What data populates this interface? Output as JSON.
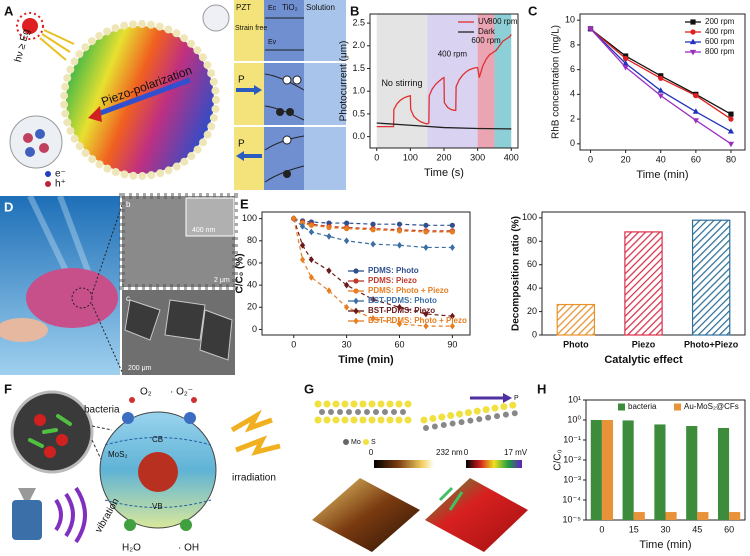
{
  "panel_letters": [
    "A",
    "B",
    "C",
    "D",
    "E",
    "F",
    "G",
    "H"
  ],
  "panel_a": {
    "excitation": "hν ≥ Eg",
    "sphere_label": "Piezo-polarization",
    "electron": "e⁻",
    "hole": "h⁺",
    "columns": [
      "PZT",
      "TiO₂",
      "Solution"
    ],
    "state": "Strain free",
    "conduction_band": "Ec",
    "valence_band": "Ev",
    "polarization_labels": [
      "P",
      "P"
    ]
  },
  "panel_d": {
    "sub_labels": [
      "b",
      "c"
    ],
    "scale_bars": [
      "400 nm",
      "2 μm",
      "200 μm"
    ]
  },
  "panel_f": {
    "bacteria": "bacteria",
    "oxygen": "O₂",
    "superoxide": "· O₂⁻",
    "cb": "CB",
    "material": "MoS₂",
    "vb": "VB",
    "irradiation": "irradiation",
    "vibration": "vibration",
    "water": "H₂O",
    "hydroxyl": "· OH"
  },
  "panel_g": {
    "atoms": [
      "Mo",
      "S"
    ],
    "polarization": "P",
    "height_bar": [
      "0",
      "232 nm"
    ],
    "potential_bar": [
      "0",
      "17 mV"
    ]
  },
  "chart_data": [
    {
      "type": "line",
      "x_label": "Time (s)",
      "y_label": "Photocurrent (μm)",
      "xlim": [
        -20,
        420
      ],
      "ylim": [
        -0.25,
        2.7
      ],
      "xticks": [
        0,
        100,
        200,
        300,
        400
      ],
      "yticks": [
        {
          "value": 0,
          "label": "0.0"
        },
        0.5,
        {
          "value": 1,
          "label": "1.0"
        },
        1.5,
        {
          "value": 2,
          "label": "2.0"
        },
        2.5
      ],
      "legend": "upper right",
      "regions": [
        {
          "label": "No stirring",
          "start": 0,
          "end": 150,
          "color": "#e4e4e4"
        },
        {
          "label": "400 rpm",
          "start": 150,
          "end": 300,
          "color": "#d9d3f1"
        },
        {
          "label": "600 rpm",
          "start": 300,
          "end": 350,
          "color": "#eba5b2"
        },
        {
          "label": "800 rpm",
          "start": 350,
          "end": 400,
          "color": "#8ccfd6"
        }
      ],
      "series": [
        {
          "name": "UV",
          "color": "#e03030",
          "x": [
            0,
            50,
            51,
            60,
            70,
            80,
            90,
            100,
            101,
            110,
            120,
            130,
            140,
            150,
            155,
            156,
            165,
            175,
            185,
            195,
            200,
            201,
            210,
            220,
            230,
            235,
            236,
            245,
            255,
            265,
            275,
            285,
            295,
            300,
            305,
            315,
            325,
            335,
            345,
            355,
            365,
            375,
            385,
            395,
            400
          ],
          "values": [
            0.22,
            0.22,
            0.6,
            0.72,
            0.8,
            0.85,
            0.88,
            0.9,
            0.6,
            0.45,
            0.38,
            0.33,
            0.3,
            0.28,
            0.3,
            0.9,
            1.05,
            1.15,
            1.22,
            1.28,
            1.3,
            0.75,
            0.65,
            0.6,
            0.58,
            0.58,
            1.1,
            1.25,
            1.35,
            1.42,
            1.47,
            1.5,
            1.52,
            1.52,
            1.3,
            1.55,
            1.7,
            1.8,
            1.85,
            1.9,
            2.0,
            2.1,
            2.15,
            2.2,
            2.25
          ]
        },
        {
          "name": "Dark",
          "color": "#222222",
          "x": [
            0,
            100,
            200,
            300,
            400
          ],
          "values": [
            0.3,
            0.25,
            0.2,
            0.18,
            0.17
          ]
        }
      ]
    },
    {
      "type": "line",
      "x_label": "Time (min)",
      "y_label": "RhB concentration (mg/L)",
      "x": [
        0,
        20,
        40,
        60,
        80
      ],
      "xlim": [
        -6,
        88
      ],
      "ylim": [
        -0.5,
        10.5
      ],
      "xticks": [
        0,
        20,
        40,
        60,
        80
      ],
      "yticks": [
        0,
        2,
        4,
        6,
        8,
        10
      ],
      "legend": "upper right",
      "series": [
        {
          "name": "200 rpm",
          "color": "#111111",
          "marker": "square",
          "values": [
            9.3,
            7.1,
            5.5,
            4.0,
            2.4
          ]
        },
        {
          "name": "400 rpm",
          "color": "#e02020",
          "marker": "circle",
          "values": [
            9.3,
            6.9,
            5.3,
            3.9,
            2.0
          ]
        },
        {
          "name": "600 rpm",
          "color": "#2233bb",
          "marker": "triangle-up",
          "values": [
            9.3,
            6.5,
            4.3,
            2.6,
            1.0
          ]
        },
        {
          "name": "800 rpm",
          "color": "#9b30c0",
          "marker": "triangle-down",
          "values": [
            9.3,
            6.2,
            3.9,
            1.9,
            0.0
          ]
        }
      ]
    },
    {
      "type": "line",
      "x_label": "Time (min)",
      "y_label": "C/C₀ (%)",
      "x": [
        0,
        5,
        10,
        20,
        30,
        45,
        60,
        75,
        90
      ],
      "xlim": [
        -18,
        100
      ],
      "ylim": [
        -5,
        106
      ],
      "xticks": [
        0,
        30,
        60,
        90
      ],
      "yticks": [
        0,
        20,
        40,
        60,
        80,
        100
      ],
      "dashed": true,
      "legend": "lower right",
      "legend_colored_text": true,
      "series": [
        {
          "name": "PDMS: Photo",
          "color": "#2f4f8f",
          "marker": "circle",
          "values": [
            100,
            98,
            97,
            96,
            96,
            95,
            95,
            94,
            94
          ]
        },
        {
          "name": "PDMS: Piezo",
          "color": "#c0392b",
          "marker": "circle",
          "values": [
            100,
            97,
            95,
            93,
            92,
            91,
            90,
            89,
            89
          ]
        },
        {
          "name": "PDMS: Photo + Piezo",
          "color": "#e67e22",
          "marker": "circle",
          "values": [
            100,
            96,
            94,
            92,
            91,
            90,
            89,
            88,
            88
          ]
        },
        {
          "name": "BST-PDMS: Photo",
          "color": "#3b6ea5",
          "marker": "diamond",
          "values": [
            100,
            93,
            88,
            84,
            80,
            77,
            76,
            74,
            74
          ]
        },
        {
          "name": "BST-PDMS: Piezo",
          "color": "#6b1a1a",
          "marker": "diamond",
          "values": [
            100,
            76,
            63,
            53,
            40,
            27,
            20,
            14,
            12
          ]
        },
        {
          "name": "BST-PDMS: Photo + Piezo",
          "color": "#e67e22",
          "marker": "diamond",
          "values": [
            100,
            63,
            47,
            35,
            20,
            10,
            5,
            3,
            3
          ]
        }
      ]
    },
    {
      "type": "bar",
      "x_label": "Catalytic effect",
      "y_label": "Decomposition ratio (%)",
      "categories": [
        "Photo",
        "Piezo",
        "Photo+Piezo"
      ],
      "values": [
        26,
        88,
        98
      ],
      "colors": [
        "#e8922a",
        "#d9304a",
        "#2f6f9a"
      ],
      "hatch": true,
      "ylim": [
        0,
        105
      ],
      "yticks": [
        0,
        20,
        40,
        60,
        80,
        100
      ]
    },
    {
      "type": "bar",
      "x_label": "Time (min)",
      "y_label": "C/C₀",
      "categories": [
        "0",
        "15",
        "30",
        "45",
        "60"
      ],
      "log_y": true,
      "ylim": [
        1e-05,
        10
      ],
      "yticks": [
        {
          "value": 1e-05,
          "label": "10⁻⁵"
        },
        {
          "value": 0.0001,
          "label": "10⁻⁴"
        },
        {
          "value": 0.001,
          "label": "10⁻³"
        },
        {
          "value": 0.01,
          "label": "10⁻²"
        },
        {
          "value": 0.1,
          "label": "10⁻¹"
        },
        {
          "value": 1,
          "label": "10⁰"
        },
        {
          "value": 10,
          "label": "10¹"
        }
      ],
      "legend": "upper right",
      "series": [
        {
          "name": "bacteria",
          "color": "#3c8c3c",
          "values": [
            1,
            0.95,
            0.6,
            0.5,
            0.4
          ]
        },
        {
          "name": "Au-MoS₂@CFs",
          "color": "#e8923a",
          "values": [
            1,
            2.5e-05,
            2.5e-05,
            2.5e-05,
            2.5e-05
          ]
        }
      ]
    }
  ]
}
